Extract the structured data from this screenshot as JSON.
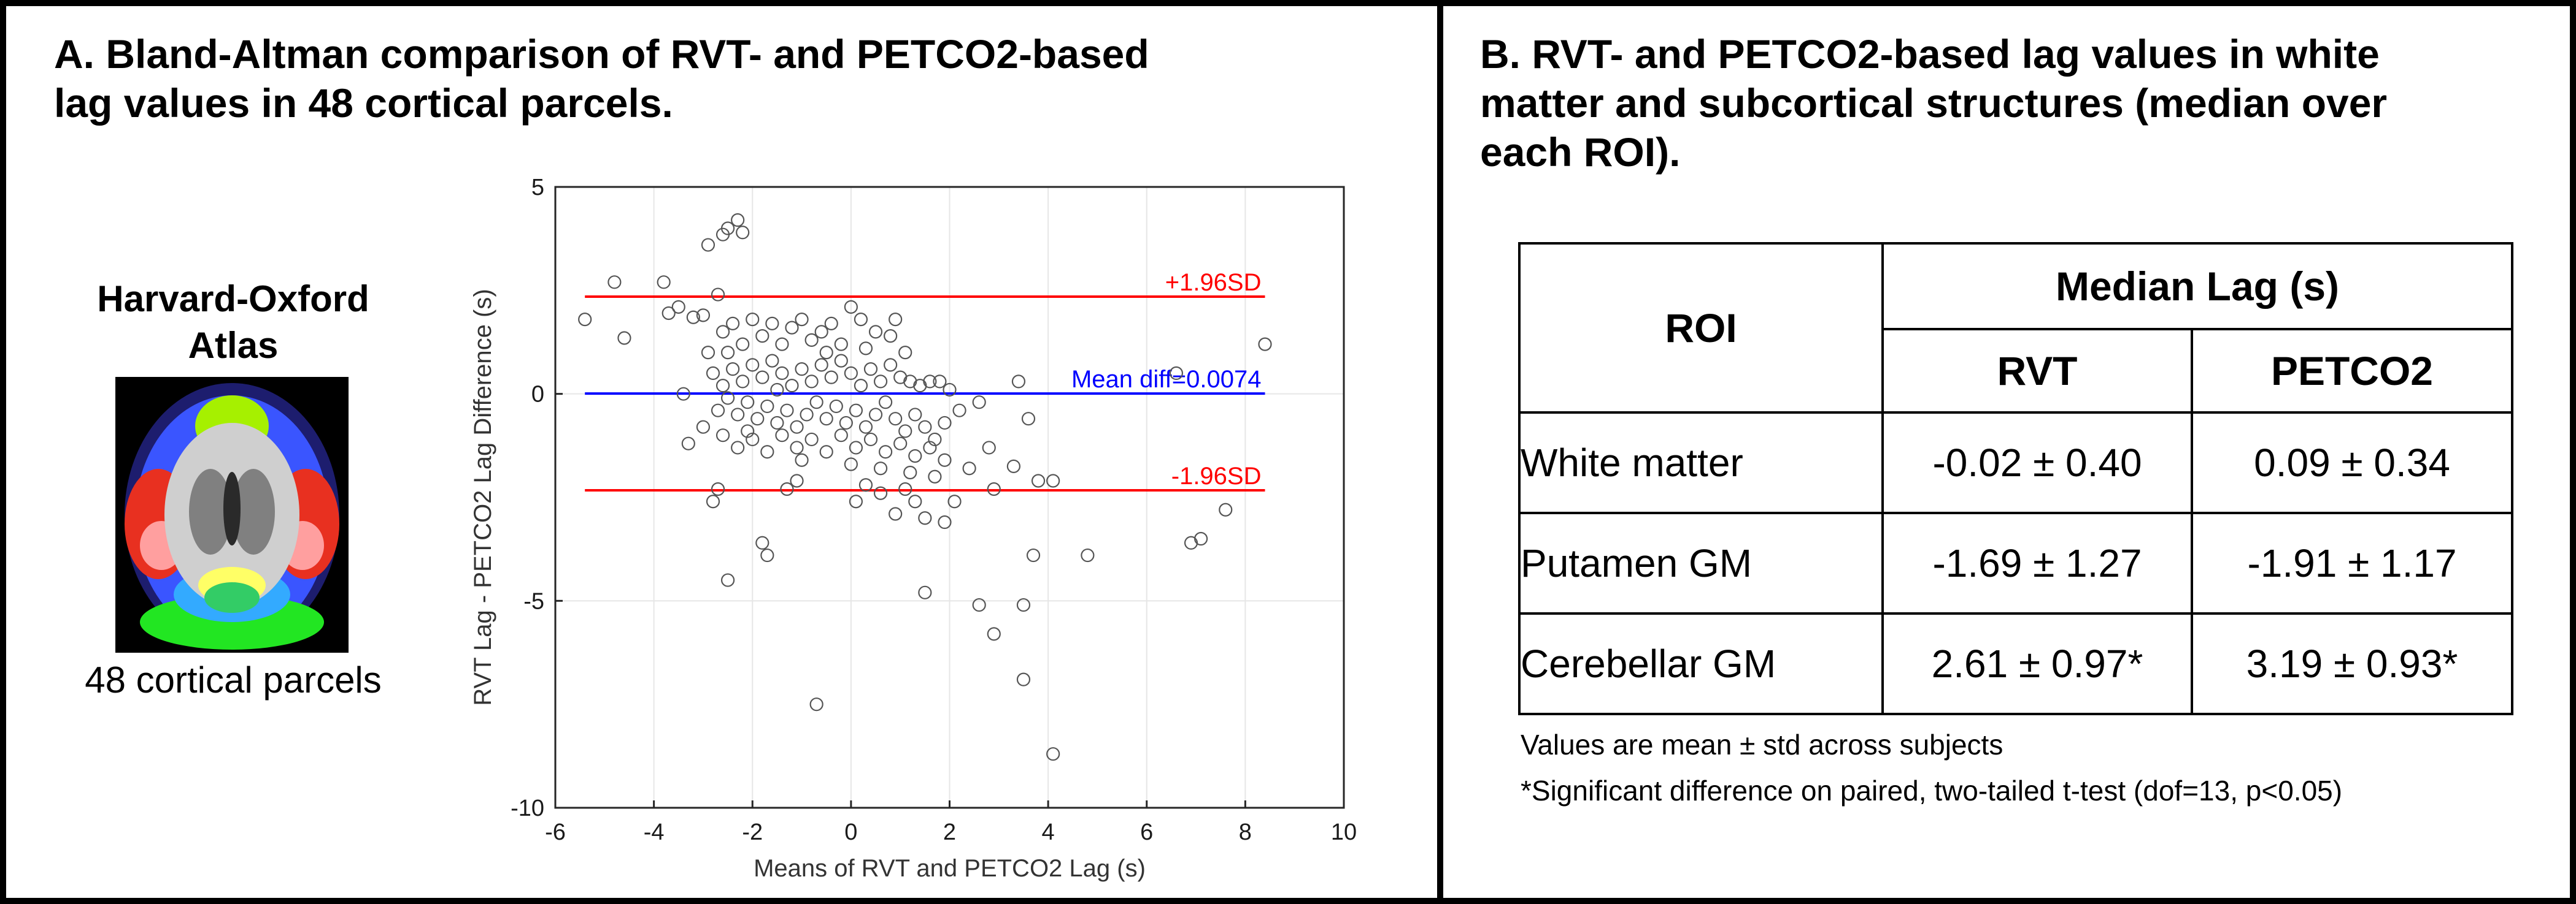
{
  "panel_a": {
    "title_line1": "A. Bland-Altman comparison of RVT- and PETCO2-based",
    "title_line2": "lag values in 48 cortical parcels.",
    "atlas_title_line1": "Harvard-Oxford",
    "atlas_title_line2": "Atlas",
    "atlas_caption": "48 cortical parcels"
  },
  "panel_b": {
    "title_line1": "B. RVT- and PETCO2-based lag values in white",
    "title_line2": "matter and subcortical structures (median over",
    "title_line3": "each ROI).",
    "table": {
      "roi_header": "ROI",
      "group_header": "Median Lag (s)",
      "col_rvt": "RVT",
      "col_petco2": "PETCO2",
      "rows": [
        {
          "roi": "White matter",
          "rvt": "-0.02 ± 0.40",
          "petco2": "0.09 ± 0.34"
        },
        {
          "roi": "Putamen GM",
          "rvt": "-1.69 ± 1.27",
          "petco2": "-1.91 ± 1.17"
        },
        {
          "roi": "Cerebellar GM",
          "rvt": "2.61 ± 0.97*",
          "petco2": "3.19 ± 0.93*"
        }
      ]
    },
    "note1": "Values are mean ± std across subjects",
    "note2": "*Significant difference on paired, two-tailed t-test (dof=13, p<0.05)"
  },
  "colors": {
    "limit_line": "#ff0000",
    "mean_line": "#0000ff",
    "marker": "#555555",
    "grid": "#e6e6e6"
  },
  "chart_data": {
    "type": "scatter",
    "title": "",
    "xlabel": "Means of RVT and PETCO2 Lag (s)",
    "ylabel": "RVT Lag - PETCO2 Lag Difference (s)",
    "xlim": [
      -6,
      10
    ],
    "ylim": [
      -10,
      5
    ],
    "xticks": [
      -6,
      -4,
      -2,
      0,
      2,
      4,
      6,
      8,
      10
    ],
    "yticks": [
      -10,
      -5,
      0,
      5
    ],
    "grid": true,
    "upper_limit": {
      "label": "+1.96SD",
      "y": 2.35,
      "x_range": [
        -5.4,
        8.4
      ]
    },
    "mean_diff": {
      "label": "Mean diff=0.0074",
      "y": 0.0074,
      "x_range": [
        -5.4,
        8.4
      ]
    },
    "lower_limit": {
      "label": "-1.96SD",
      "y": -2.33,
      "x_range": [
        -5.4,
        8.4
      ]
    },
    "points": [
      [
        -5.4,
        1.8
      ],
      [
        -4.8,
        2.7
      ],
      [
        -4.6,
        1.35
      ],
      [
        -3.8,
        2.7
      ],
      [
        -3.7,
        1.95
      ],
      [
        -3.5,
        2.1
      ],
      [
        -3.2,
        1.85
      ],
      [
        -3.0,
        1.9
      ],
      [
        -2.9,
        3.6
      ],
      [
        -2.7,
        2.4
      ],
      [
        -2.5,
        4.0
      ],
      [
        -2.3,
        4.2
      ],
      [
        -2.2,
        3.9
      ],
      [
        -2.6,
        3.85
      ],
      [
        -3.4,
        0.0
      ],
      [
        -3.3,
        -1.2
      ],
      [
        -3.0,
        -0.8
      ],
      [
        -2.8,
        -2.6
      ],
      [
        -2.7,
        -2.3
      ],
      [
        -2.5,
        -4.5
      ],
      [
        -1.8,
        -3.6
      ],
      [
        -1.7,
        -3.9
      ],
      [
        -1.3,
        -2.3
      ],
      [
        -1.1,
        -2.1
      ],
      [
        -0.7,
        -7.5
      ],
      [
        0.1,
        -2.6
      ],
      [
        0.3,
        -2.2
      ],
      [
        0.6,
        -2.4
      ],
      [
        0.9,
        -2.9
      ],
      [
        1.1,
        -2.3
      ],
      [
        1.3,
        -2.6
      ],
      [
        1.5,
        -3.0
      ],
      [
        1.9,
        -3.1
      ],
      [
        2.1,
        -2.6
      ],
      [
        2.4,
        -1.8
      ],
      [
        2.8,
        -1.3
      ],
      [
        2.9,
        -2.3
      ],
      [
        3.3,
        -1.75
      ],
      [
        3.6,
        -0.6
      ],
      [
        3.8,
        -2.1
      ],
      [
        4.1,
        -2.1
      ],
      [
        1.5,
        -4.8
      ],
      [
        2.6,
        -5.1
      ],
      [
        2.9,
        -5.8
      ],
      [
        3.5,
        -5.1
      ],
      [
        3.5,
        -6.9
      ],
      [
        3.7,
        -3.9
      ],
      [
        4.1,
        -8.7
      ],
      [
        4.8,
        -3.9
      ],
      [
        6.6,
        0.5
      ],
      [
        6.9,
        -3.6
      ],
      [
        7.1,
        -3.5
      ],
      [
        7.6,
        -2.8
      ],
      [
        8.4,
        1.2
      ],
      [
        -2.9,
        1.0
      ],
      [
        -2.6,
        1.5
      ],
      [
        -2.4,
        1.7
      ],
      [
        -2.2,
        1.2
      ],
      [
        -2.0,
        1.8
      ],
      [
        -1.8,
        1.4
      ],
      [
        -1.6,
        1.7
      ],
      [
        -1.4,
        1.2
      ],
      [
        -1.2,
        1.6
      ],
      [
        -1.0,
        1.8
      ],
      [
        -0.8,
        1.3
      ],
      [
        -0.6,
        1.5
      ],
      [
        -0.4,
        1.7
      ],
      [
        -0.2,
        1.2
      ],
      [
        0.0,
        2.1
      ],
      [
        0.2,
        1.8
      ],
      [
        0.5,
        1.5
      ],
      [
        0.8,
        1.4
      ],
      [
        0.9,
        1.8
      ],
      [
        -2.8,
        0.5
      ],
      [
        -2.6,
        0.2
      ],
      [
        -2.4,
        0.6
      ],
      [
        -2.2,
        0.3
      ],
      [
        -2.0,
        0.7
      ],
      [
        -1.8,
        0.4
      ],
      [
        -1.6,
        0.8
      ],
      [
        -1.4,
        0.5
      ],
      [
        -1.2,
        0.2
      ],
      [
        -1.0,
        0.6
      ],
      [
        -0.8,
        0.3
      ],
      [
        -0.6,
        0.7
      ],
      [
        -0.4,
        0.4
      ],
      [
        -0.2,
        0.8
      ],
      [
        0.0,
        0.5
      ],
      [
        0.2,
        0.2
      ],
      [
        0.4,
        0.6
      ],
      [
        0.6,
        0.3
      ],
      [
        0.8,
        0.7
      ],
      [
        1.0,
        0.4
      ],
      [
        1.2,
        0.3
      ],
      [
        1.4,
        0.2
      ],
      [
        1.6,
        0.3
      ],
      [
        1.8,
        0.3
      ],
      [
        2.0,
        0.1
      ],
      [
        2.2,
        -0.4
      ],
      [
        2.6,
        -0.2
      ],
      [
        3.4,
        0.3
      ],
      [
        -2.7,
        -0.4
      ],
      [
        -2.5,
        -0.1
      ],
      [
        -2.3,
        -0.5
      ],
      [
        -2.1,
        -0.2
      ],
      [
        -1.9,
        -0.6
      ],
      [
        -1.7,
        -0.3
      ],
      [
        -1.5,
        -0.7
      ],
      [
        -1.3,
        -0.4
      ],
      [
        -1.1,
        -0.8
      ],
      [
        -0.9,
        -0.5
      ],
      [
        -0.7,
        -0.2
      ],
      [
        -0.5,
        -0.6
      ],
      [
        -0.3,
        -0.3
      ],
      [
        -0.1,
        -0.7
      ],
      [
        0.1,
        -0.4
      ],
      [
        0.3,
        -0.8
      ],
      [
        0.5,
        -0.5
      ],
      [
        0.7,
        -0.2
      ],
      [
        0.9,
        -0.6
      ],
      [
        1.1,
        -0.9
      ],
      [
        1.3,
        -0.5
      ],
      [
        1.5,
        -0.8
      ],
      [
        1.7,
        -1.1
      ],
      [
        1.9,
        -0.7
      ],
      [
        -2.6,
        -1.0
      ],
      [
        -2.3,
        -1.3
      ],
      [
        -2.0,
        -1.1
      ],
      [
        -1.7,
        -1.4
      ],
      [
        -1.4,
        -1.0
      ],
      [
        -1.1,
        -1.3
      ],
      [
        -0.8,
        -1.1
      ],
      [
        -0.5,
        -1.4
      ],
      [
        -0.2,
        -1.0
      ],
      [
        0.1,
        -1.3
      ],
      [
        0.4,
        -1.1
      ],
      [
        0.7,
        -1.4
      ],
      [
        1.0,
        -1.2
      ],
      [
        1.3,
        -1.5
      ],
      [
        1.6,
        -1.3
      ],
      [
        1.9,
        -1.6
      ],
      [
        0.6,
        -1.8
      ],
      [
        1.2,
        -1.9
      ],
      [
        1.7,
        -2.0
      ],
      [
        -2.5,
        1.0
      ],
      [
        -1.5,
        0.1
      ],
      [
        -0.5,
        1.0
      ],
      [
        0.3,
        1.1
      ],
      [
        1.1,
        1.0
      ],
      [
        -2.1,
        -0.9
      ],
      [
        -1.0,
        -1.6
      ],
      [
        0.0,
        -1.7
      ]
    ]
  }
}
